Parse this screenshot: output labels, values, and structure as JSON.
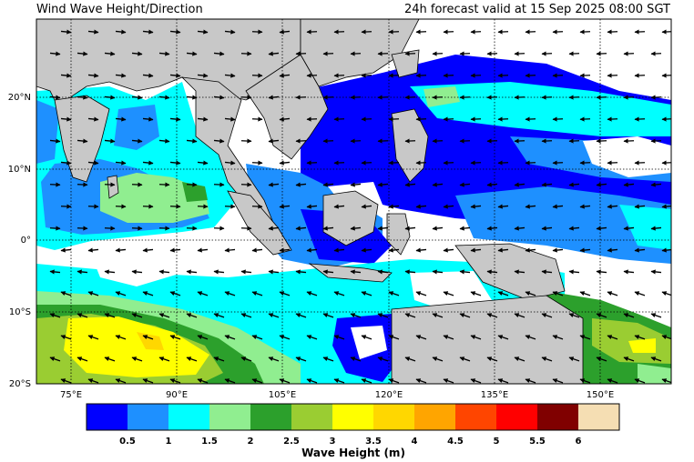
{
  "header": {
    "title": "Wind Wave Height/Direction",
    "valid": "24h forecast valid at 15 Sep 2025 08:00 SGT"
  },
  "axes": {
    "lon_ticks": [
      "75°E",
      "90°E",
      "105°E",
      "120°E",
      "135°E",
      "150°E"
    ],
    "lat_ticks": [
      "20°N",
      "10°N",
      "0°",
      "10°S",
      "20°S"
    ]
  },
  "colorbar": {
    "title": "Wave Height (m)",
    "tick_labels": [
      "0.5",
      "1",
      "1.5",
      "2",
      "2.5",
      "3",
      "3.5",
      "4",
      "4.5",
      "5",
      "5.5",
      "6"
    ],
    "colors": [
      "#0000ff",
      "#1e90ff",
      "#00ffff",
      "#90ee90",
      "#2ca02c",
      "#9acd32",
      "#ffff00",
      "#ffd700",
      "#ffa500",
      "#ff4500",
      "#ff0000",
      "#800000",
      "#f5deb3"
    ]
  },
  "colors": {
    "land": "#c8c8c8",
    "calm": "#ffffff",
    "grid": "#000000"
  }
}
